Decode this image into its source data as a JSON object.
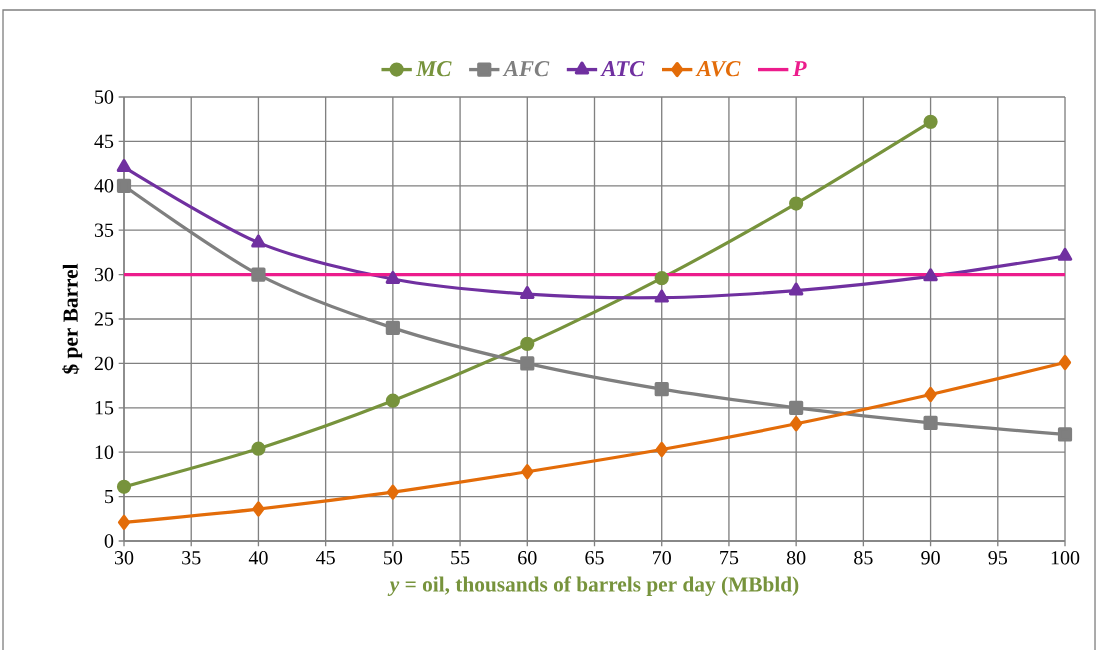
{
  "chart_data": {
    "type": "line",
    "xlabel": "*y* = oil, thousands of barrels per day (MBbld)",
    "ylabel": "$ per Barrel",
    "x": [
      30,
      40,
      50,
      60,
      70,
      80,
      90,
      100
    ],
    "xlim": [
      30,
      100
    ],
    "xticks": [
      30,
      35,
      40,
      45,
      50,
      55,
      60,
      65,
      70,
      75,
      80,
      85,
      90,
      95,
      100
    ],
    "ylim": [
      0,
      50
    ],
    "yticks": [
      0,
      5,
      10,
      15,
      20,
      25,
      30,
      35,
      40,
      45,
      50
    ],
    "grid": true,
    "legend": "top",
    "line_style": "solid",
    "series": [
      {
        "name": "MC",
        "color": "#77933c",
        "marker": "circle",
        "values": [
          6.1,
          10.4,
          15.8,
          22.2,
          29.6,
          38,
          47.2,
          null
        ]
      },
      {
        "name": "AFC",
        "color": "#7f7f7f",
        "marker": "square",
        "values": [
          40,
          30,
          24,
          20,
          17.1,
          15,
          13.3,
          12
        ]
      },
      {
        "name": "ATC",
        "color": "#7030a0",
        "marker": "triangle",
        "values": [
          42.1,
          33.6,
          29.5,
          27.8,
          27.4,
          28.2,
          29.8,
          32.1
        ]
      },
      {
        "name": "AVC",
        "color": "#e36c09",
        "marker": "diamond",
        "values": [
          2.1,
          3.6,
          5.5,
          7.8,
          10.3,
          13.2,
          16.5,
          20.1
        ]
      },
      {
        "name": "P",
        "color": "#ec1c8c",
        "marker": "none",
        "values": [
          30,
          30,
          30,
          30,
          30,
          30,
          30,
          30
        ]
      }
    ]
  }
}
